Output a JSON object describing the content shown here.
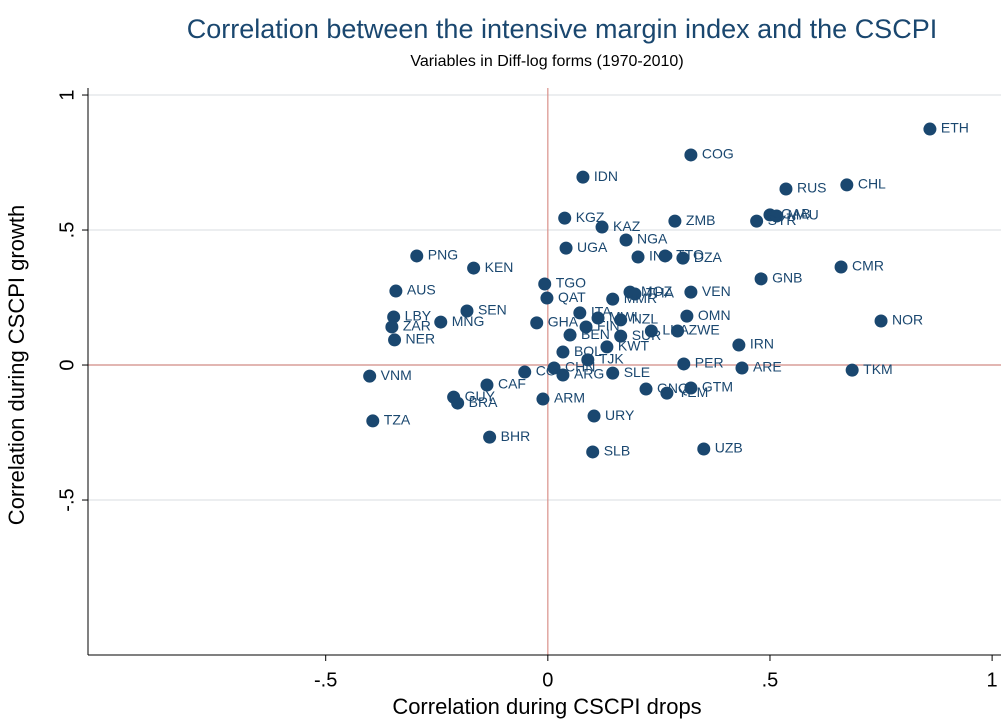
{
  "chart_data": {
    "type": "scatter",
    "title": "Correlation between the intensive margin index and the CSCPI",
    "subtitle": "Variables in Diff-log forms (1970-2010)",
    "x_label": "Correlation during CSCPI drops",
    "y_label": "Correlation during CSCPI growth",
    "xlim": [
      -1.035,
      1.02
    ],
    "ylim": [
      -1.074,
      1.026
    ],
    "xticks": [
      {
        "value": -0.5,
        "label": "-.5"
      },
      0,
      {
        "value": 0.5,
        "label": ".5"
      },
      1
    ],
    "yticks": [
      {
        "value": -0.5,
        "label": "-.5"
      },
      0,
      {
        "value": 0.5,
        "label": ".5"
      },
      1
    ],
    "grid": true,
    "color": "#1a476f",
    "reference_lines": {
      "x": 0,
      "y": 0,
      "color": "#d9908a"
    },
    "point_labels": [
      "ETH",
      "COG",
      "IDN",
      "RUS",
      "CHL",
      "KGZ",
      "ZMB",
      "KAZ",
      "GAB",
      "MAU",
      "SYR",
      "UGA",
      "NGA",
      "PNG",
      "KEN",
      "IND",
      "TTO",
      "DZA",
      "CMR",
      "GNB",
      "TGO",
      "AUS",
      "QAT",
      "MOZ",
      "THA",
      "VEN",
      "MMR",
      "SEN",
      "LBY",
      "MNG",
      "ZAR",
      "NER",
      "GHA",
      "ITA",
      "MWI",
      "NZL",
      "OMN",
      "NOR",
      "LKA",
      "ZWE",
      "FIN",
      "BEN",
      "SUR",
      "IRN",
      "KWT",
      "BOL",
      "TJK",
      "PER",
      "ARE",
      "TKM",
      "VNM",
      "CHN",
      "ARG",
      "SLE",
      "CAF",
      "GNQ",
      "GTM",
      "YEM",
      "GUY",
      "BRA",
      "ARM",
      "URY",
      "TZA",
      "BHR",
      "SLB",
      "UZB",
      "COL"
    ],
    "x": [
      0.86,
      0.322,
      0.079,
      0.536,
      0.673,
      0.038,
      0.286,
      0.122,
      0.5,
      0.515,
      0.47,
      0.041,
      0.176,
      -0.295,
      -0.167,
      0.203,
      0.264,
      0.304,
      0.66,
      0.48,
      -0.007,
      -0.342,
      -0.002,
      0.185,
      0.196,
      0.322,
      0.146,
      -0.182,
      -0.347,
      -0.241,
      -0.351,
      -0.345,
      -0.025,
      0.072,
      0.113,
      0.164,
      0.313,
      0.75,
      0.233,
      0.292,
      0.086,
      0.05,
      0.164,
      0.43,
      0.133,
      0.034,
      0.09,
      0.306,
      0.437,
      0.685,
      -0.401,
      0.014,
      0.034,
      0.146,
      -0.137,
      0.221,
      0.322,
      0.268,
      -0.212,
      -0.203,
      -0.011,
      0.104,
      -0.394,
      -0.131,
      0.101,
      0.351,
      -0.052
    ],
    "values": [
      0.874,
      0.778,
      0.696,
      0.652,
      0.667,
      0.544,
      0.533,
      0.511,
      0.556,
      0.552,
      0.533,
      0.433,
      0.463,
      0.404,
      0.359,
      0.4,
      0.404,
      0.396,
      0.363,
      0.319,
      0.3,
      0.274,
      0.248,
      0.27,
      0.263,
      0.27,
      0.244,
      0.2,
      0.178,
      0.159,
      0.141,
      0.093,
      0.156,
      0.193,
      0.174,
      0.167,
      0.181,
      0.163,
      0.126,
      0.126,
      0.141,
      0.111,
      0.107,
      0.074,
      0.067,
      0.048,
      0.019,
      0.004,
      -0.011,
      -0.019,
      -0.041,
      -0.011,
      -0.037,
      -0.03,
      -0.074,
      -0.089,
      -0.085,
      -0.104,
      -0.119,
      -0.141,
      -0.126,
      -0.189,
      -0.207,
      -0.267,
      -0.322,
      -0.311,
      -0.026
    ]
  }
}
